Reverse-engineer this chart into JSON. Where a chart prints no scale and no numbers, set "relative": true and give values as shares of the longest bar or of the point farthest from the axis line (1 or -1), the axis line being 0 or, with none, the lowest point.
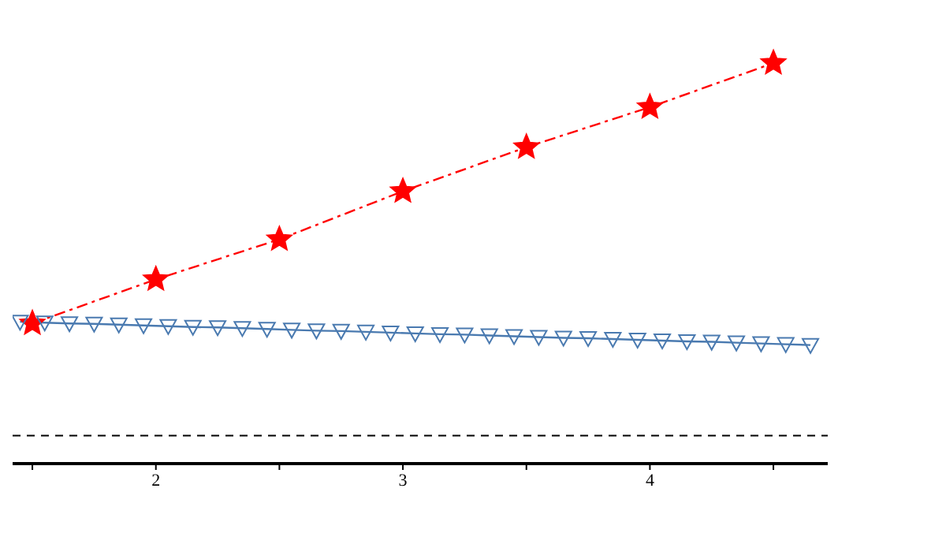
{
  "chart_data": {
    "type": "line",
    "relative": true,
    "xlim": [
      1.42,
      4.72
    ],
    "xticks": [
      {
        "value": 1.5,
        "label": null
      },
      2,
      {
        "value": 2.5,
        "label": null
      },
      3,
      {
        "value": 3.5,
        "label": null
      },
      4,
      {
        "value": 4.5,
        "label": null
      }
    ],
    "tick_labels": "x",
    "series": [
      {
        "color": "#ff0000",
        "marker": "star",
        "line_style": "dashed",
        "x": [
          1.5,
          2,
          2.5,
          3,
          3.5,
          4,
          4.5
        ],
        "values": [
          0.35,
          0.46,
          0.56,
          0.68,
          0.79,
          0.89,
          1
        ]
      },
      {
        "color": "#4a7ab0",
        "marker": "triangle",
        "line_style": "solid",
        "x": [
          1.45,
          1.55,
          1.65,
          1.75,
          1.85,
          1.95,
          2.05,
          2.15,
          2.25,
          2.35,
          2.45,
          2.55,
          2.65,
          2.75,
          2.85,
          2.95,
          3.05,
          3.15,
          3.25,
          3.35,
          3.45,
          3.55,
          3.65,
          3.75,
          3.85,
          3.95,
          4.05,
          4.15,
          4.25,
          4.35,
          4.45,
          4.55,
          4.65
        ],
        "values": [
          0.354,
          0.352,
          0.35,
          0.349,
          0.347,
          0.345,
          0.343,
          0.341,
          0.34,
          0.338,
          0.336,
          0.334,
          0.332,
          0.331,
          0.329,
          0.327,
          0.325,
          0.323,
          0.322,
          0.32,
          0.318,
          0.316,
          0.314,
          0.313,
          0.311,
          0.309,
          0.307,
          0.305,
          0.304,
          0.302,
          0.3,
          0.298,
          0.296
        ]
      }
    ],
    "ref_lines": [
      {
        "axis": "y",
        "value": 0.07,
        "color": "#000000",
        "line_style": "dashed"
      }
    ]
  }
}
